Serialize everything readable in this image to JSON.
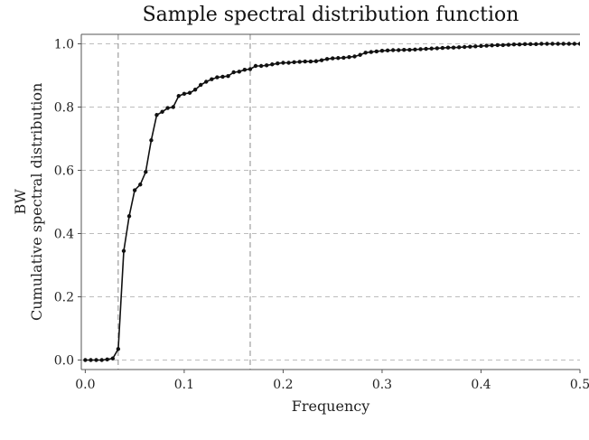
{
  "chart_data": {
    "type": "line",
    "title": "Sample spectral distribution function",
    "xlabel": "Frequency",
    "ylabel_lines": [
      "BW",
      "Cumulative spectral distribution"
    ],
    "xlim": [
      -0.004,
      0.5
    ],
    "ylim": [
      -0.03,
      1.03
    ],
    "xticks": [
      0.0,
      0.1,
      0.2,
      0.3,
      0.4,
      0.5
    ],
    "xtick_labels": [
      "0.0",
      "0.1",
      "0.2",
      "0.3",
      "0.4",
      "0.5"
    ],
    "yticks": [
      0.0,
      0.2,
      0.4,
      0.6,
      0.8,
      1.0
    ],
    "ytick_labels": [
      "0.0",
      "0.2",
      "0.4",
      "0.6",
      "0.8",
      "1.0"
    ],
    "grid": "horizontal-dashed",
    "reference_lines_x": [
      0.0333,
      0.1667
    ],
    "series": [
      {
        "name": "cumulative",
        "x": [
          0.0,
          0.0056,
          0.0111,
          0.0167,
          0.0222,
          0.0278,
          0.0333,
          0.0389,
          0.0444,
          0.05,
          0.0556,
          0.0611,
          0.0667,
          0.0722,
          0.0778,
          0.0833,
          0.0889,
          0.0944,
          0.1,
          0.1056,
          0.1111,
          0.1167,
          0.1222,
          0.1278,
          0.1333,
          0.1389,
          0.1444,
          0.15,
          0.1556,
          0.1611,
          0.1667,
          0.1722,
          0.1778,
          0.1833,
          0.1889,
          0.1944,
          0.2,
          0.2056,
          0.2111,
          0.2167,
          0.2222,
          0.2278,
          0.2333,
          0.2389,
          0.2444,
          0.25,
          0.2556,
          0.2611,
          0.2667,
          0.2722,
          0.2778,
          0.2833,
          0.2889,
          0.2944,
          0.3,
          0.3056,
          0.3111,
          0.3167,
          0.3222,
          0.3278,
          0.3333,
          0.3389,
          0.3444,
          0.35,
          0.3556,
          0.3611,
          0.3667,
          0.3722,
          0.3778,
          0.3833,
          0.3889,
          0.3944,
          0.4,
          0.4056,
          0.4111,
          0.4167,
          0.4222,
          0.4278,
          0.4333,
          0.4389,
          0.4444,
          0.45,
          0.4556,
          0.4611,
          0.4667,
          0.4722,
          0.4778,
          0.4833,
          0.4889,
          0.4944,
          0.5
        ],
        "y": [
          0.0,
          0.0,
          0.0,
          0.0,
          0.002,
          0.005,
          0.035,
          0.345,
          0.455,
          0.537,
          0.555,
          0.595,
          0.695,
          0.775,
          0.785,
          0.797,
          0.8,
          0.835,
          0.842,
          0.845,
          0.855,
          0.87,
          0.88,
          0.888,
          0.894,
          0.896,
          0.898,
          0.91,
          0.912,
          0.918,
          0.92,
          0.93,
          0.93,
          0.932,
          0.935,
          0.938,
          0.94,
          0.94,
          0.942,
          0.943,
          0.944,
          0.944,
          0.945,
          0.948,
          0.952,
          0.954,
          0.955,
          0.956,
          0.958,
          0.96,
          0.965,
          0.972,
          0.974,
          0.976,
          0.978,
          0.979,
          0.98,
          0.98,
          0.981,
          0.981,
          0.982,
          0.983,
          0.984,
          0.985,
          0.986,
          0.987,
          0.988,
          0.988,
          0.989,
          0.99,
          0.991,
          0.992,
          0.993,
          0.994,
          0.995,
          0.996,
          0.996,
          0.997,
          0.998,
          0.998,
          0.999,
          0.999,
          0.999,
          1.0,
          1.0,
          1.0,
          1.0,
          1.0,
          1.0,
          1.0,
          1.0
        ]
      }
    ],
    "colors": {
      "line": "#111111",
      "grid": "#bdbdbd",
      "axis": "#555555",
      "refline": "#8a8a8a"
    }
  }
}
